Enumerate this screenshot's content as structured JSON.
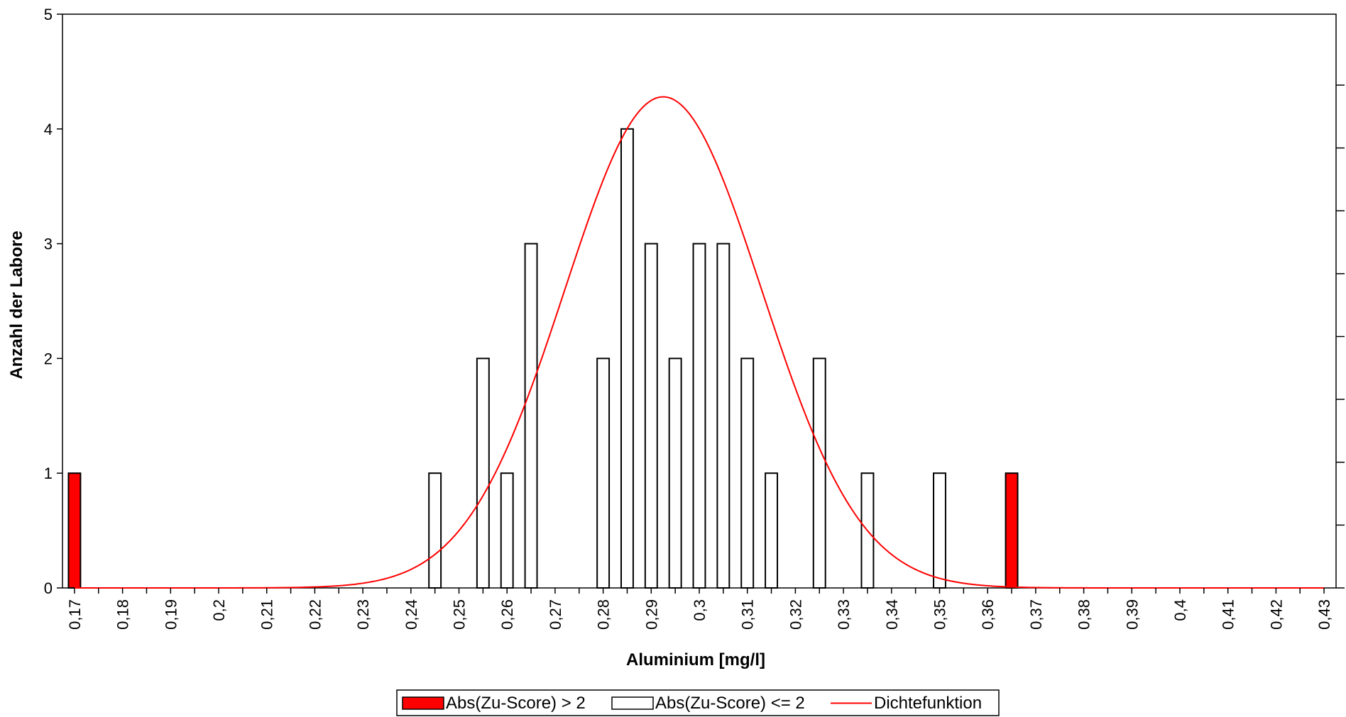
{
  "chart_data": {
    "type": "bar",
    "xlabel": "Aluminium [mg/l]",
    "ylabel": "Anzahl der Labore",
    "xlim": [
      0.1675,
      0.4325
    ],
    "ylim": [
      0,
      5
    ],
    "x_ticks": [
      0.17,
      0.18,
      0.19,
      0.2,
      0.21,
      0.22,
      0.23,
      0.24,
      0.25,
      0.26,
      0.27,
      0.28,
      0.29,
      0.3,
      0.31,
      0.32,
      0.33,
      0.34,
      0.35,
      0.36,
      0.37,
      0.38,
      0.39,
      0.4,
      0.41,
      0.42,
      0.43
    ],
    "x_tick_labels": [
      "0,17",
      "0,18",
      "0,19",
      "0,2",
      "0,21",
      "0,22",
      "0,23",
      "0,24",
      "0,25",
      "0,26",
      "0,27",
      "0,28",
      "0,29",
      "0,3",
      "0,31",
      "0,32",
      "0,33",
      "0,34",
      "0,35",
      "0,36",
      "0,37",
      "0,38",
      "0,39",
      "0,4",
      "0,41",
      "0,42",
      "0,43"
    ],
    "y_ticks": [
      0,
      1,
      2,
      3,
      4,
      5
    ],
    "y_tick_labels": [
      "0",
      "1",
      "2",
      "3",
      "4",
      "5"
    ],
    "bar_width": 0.0025,
    "series": [
      {
        "name": "Abs(Zu-Score) > 2",
        "color": "#ff0000",
        "points": [
          {
            "x": 0.17,
            "y": 1
          },
          {
            "x": 0.365,
            "y": 1
          }
        ]
      },
      {
        "name": "Abs(Zu-Score) <= 2",
        "color": "#ffffff",
        "points": [
          {
            "x": 0.245,
            "y": 1
          },
          {
            "x": 0.255,
            "y": 2
          },
          {
            "x": 0.26,
            "y": 1
          },
          {
            "x": 0.265,
            "y": 3
          },
          {
            "x": 0.28,
            "y": 2
          },
          {
            "x": 0.285,
            "y": 4
          },
          {
            "x": 0.29,
            "y": 3
          },
          {
            "x": 0.295,
            "y": 2
          },
          {
            "x": 0.3,
            "y": 3
          },
          {
            "x": 0.305,
            "y": 3
          },
          {
            "x": 0.31,
            "y": 2
          },
          {
            "x": 0.315,
            "y": 1
          },
          {
            "x": 0.325,
            "y": 2
          },
          {
            "x": 0.335,
            "y": 1
          },
          {
            "x": 0.35,
            "y": 1
          }
        ]
      },
      {
        "name": "Dichtefunktion",
        "type": "line",
        "color": "#ff0000",
        "distribution": {
          "mean": 0.2925,
          "sd": 0.0205,
          "peak": 4.28
        }
      }
    ],
    "legend": {
      "position": "bottom-center",
      "items": [
        {
          "label": "Abs(Zu-Score) > 2",
          "marker": "bar",
          "color": "#ff0000"
        },
        {
          "label": "Abs(Zu-Score) <= 2",
          "marker": "bar",
          "color": "#ffffff"
        },
        {
          "label": "Dichtefunktion",
          "marker": "line",
          "color": "#ff0000"
        }
      ]
    },
    "grid": false,
    "secondary_y_ticks": true
  }
}
